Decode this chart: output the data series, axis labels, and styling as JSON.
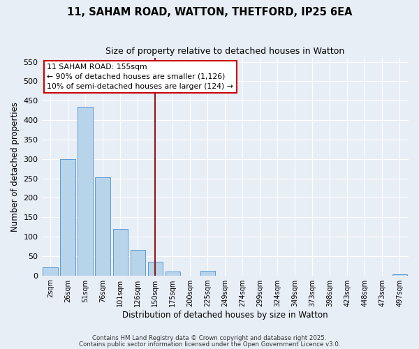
{
  "title": "11, SAHAM ROAD, WATTON, THETFORD, IP25 6EA",
  "subtitle": "Size of property relative to detached houses in Watton",
  "xlabel": "Distribution of detached houses by size in Watton",
  "ylabel": "Number of detached properties",
  "bar_labels": [
    "2sqm",
    "26sqm",
    "51sqm",
    "76sqm",
    "101sqm",
    "126sqm",
    "150sqm",
    "175sqm",
    "200sqm",
    "225sqm",
    "249sqm",
    "274sqm",
    "299sqm",
    "324sqm",
    "349sqm",
    "373sqm",
    "398sqm",
    "423sqm",
    "448sqm",
    "473sqm",
    "497sqm"
  ],
  "bar_values": [
    20,
    300,
    435,
    252,
    120,
    65,
    35,
    10,
    0,
    12,
    0,
    0,
    0,
    0,
    0,
    0,
    0,
    0,
    0,
    0,
    3
  ],
  "bar_color": "#b8d4eb",
  "bar_edge_color": "#5b9bd5",
  "background_color": "#e8eef6",
  "grid_color": "#ffffff",
  "ylim": [
    0,
    560
  ],
  "yticks": [
    0,
    50,
    100,
    150,
    200,
    250,
    300,
    350,
    400,
    450,
    500,
    550
  ],
  "vline_x_idx": 6,
  "vline_color": "#8b1a1a",
  "annotation_title": "11 SAHAM ROAD: 155sqm",
  "annotation_line1": "← 90% of detached houses are smaller (1,126)",
  "annotation_line2": "10% of semi-detached houses are larger (124) →",
  "annotation_box_facecolor": "#ffffff",
  "annotation_border_color": "#cc0000",
  "footer1": "Contains HM Land Registry data © Crown copyright and database right 2025.",
  "footer2": "Contains public sector information licensed under the Open Government Licence v3.0."
}
